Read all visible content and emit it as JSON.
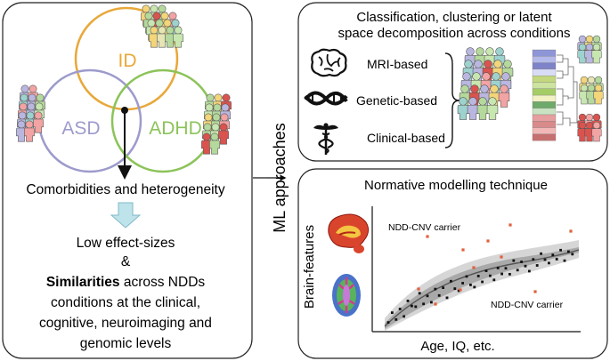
{
  "left_panel": {
    "venn": {
      "id_label": "ID",
      "asd_label": "ASD",
      "adhd_label": "ADHD"
    },
    "comorbidities": "Comorbidities and heterogeneity",
    "low_effect": "Low effect-sizes",
    "ampersand": "&",
    "similarities_bold": "Similarities",
    "similarities_rest": " across NDDs",
    "line2": "conditions at the clinical,",
    "line3": "cognitive, neuroimaging and",
    "line4": "genomic levels"
  },
  "middle": {
    "ml_label": "ML approaches"
  },
  "top_right": {
    "title_line1": "Classification, clustering or latent",
    "title_line2": "space decomposition across conditions",
    "methods": [
      "MRI-based",
      "Genetic-based",
      "Clinical-based"
    ],
    "icons": [
      "brain-icon",
      "dna-icon",
      "caduceus-icon"
    ]
  },
  "bottom_right": {
    "title": "Normative modelling technique",
    "ylabel": "Brain-features",
    "xlabel": "Age, IQ, etc.",
    "carrier_top": "NDD-CNV carrier",
    "carrier_bottom": "NDD-CNV carrier"
  },
  "colors": {
    "id_circle": "#e8a83a",
    "asd_circle": "#9d9bcc",
    "adhd_circle": "#8cc35a",
    "outlier": "#e0603c",
    "arrow_down": "#bfe3ea"
  }
}
